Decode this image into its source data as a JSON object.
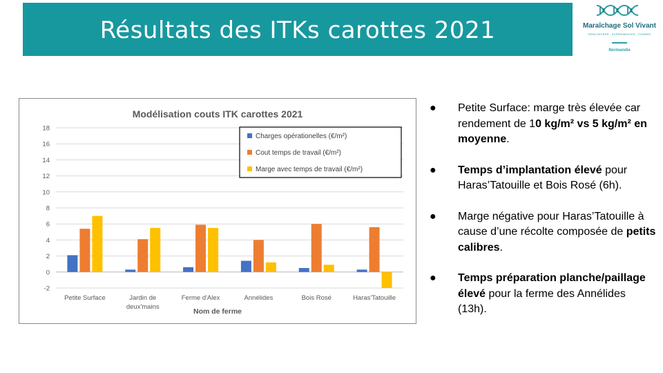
{
  "slide": {
    "title": "Résultats des ITKs carottes 2021"
  },
  "logo": {
    "name": "Maraîchage Sol Vivant",
    "tagline": "RENCONTRER · EXPÉRIMENTER · FORMER",
    "region": "Normandie",
    "icon": "dna-helix-logo-icon"
  },
  "colors": {
    "title_bar": "#17989f",
    "charges": "#4472c4",
    "cout": "#ed7d31",
    "marge": "#ffc000"
  },
  "chart_data": {
    "type": "bar",
    "title": "Modélisation couts ITK carottes 2021",
    "xlabel": "Nom de ferme",
    "ylabel": "",
    "ylim": [
      -2,
      18
    ],
    "yticks": [
      "-2",
      "0",
      "2",
      "4",
      "6",
      "8",
      "10",
      "12",
      "14",
      "16",
      "18"
    ],
    "grid": true,
    "legend": "top-right",
    "categories": [
      "Petite Surface",
      "Jardin de deux'mains",
      "Ferme d'Alex",
      "Annélides",
      "Bois Rosé",
      "Haras'Tatouille"
    ],
    "category_lines": [
      [
        "Petite Surface"
      ],
      [
        "Jardin de",
        "deux'mains"
      ],
      [
        "Ferme d'Alex"
      ],
      [
        "Annélides"
      ],
      [
        "Bois Rosé"
      ],
      [
        "Haras'Tatouille"
      ]
    ],
    "series": [
      {
        "name": "Charges opérationelles (€/m²)",
        "color": "#4472c4",
        "values": [
          2.1,
          0.3,
          0.6,
          1.4,
          0.5,
          0.3
        ]
      },
      {
        "name": "Cout temps de travail (€/m²)",
        "color": "#ed7d31",
        "values": [
          5.4,
          4.1,
          5.9,
          4.0,
          6.0,
          5.6
        ]
      },
      {
        "name": "Marge avec temps de travail (€/m²)",
        "color": "#ffc000",
        "values": [
          7.0,
          5.5,
          5.5,
          1.2,
          0.9,
          -2.0
        ]
      }
    ]
  },
  "bullets": [
    {
      "icon": "bullet-dot-icon",
      "symbol": "●",
      "parts": [
        {
          "text": "Petite Surface: marge très élevée car rendement de 1",
          "bold": false
        },
        {
          "text": "0 kg/m² vs 5 kg/m² en moyenne",
          "bold": true
        },
        {
          "text": ".",
          "bold": false
        }
      ]
    },
    {
      "icon": "bullet-dot-icon",
      "symbol": "●",
      "parts": [
        {
          "text": "Temps d’implantation élevé",
          "bold": true
        },
        {
          "text": " pour Haras’Tatouille et Bois Rosé (6h).",
          "bold": false
        }
      ]
    },
    {
      "icon": "bullet-dot-icon",
      "symbol": "●",
      "parts": [
        {
          "text": "Marge négative pour Haras’Tatouille à cause d’une récolte composée de ",
          "bold": false
        },
        {
          "text": "petits calibres",
          "bold": true
        },
        {
          "text": ".",
          "bold": false
        }
      ]
    },
    {
      "icon": "bullet-dot-icon",
      "symbol": "●",
      "parts": [
        {
          "text": "Temps préparation planche/paillage élevé",
          "bold": true
        },
        {
          "text": " pour la ferme des Annélides (13h).",
          "bold": false
        }
      ]
    }
  ]
}
